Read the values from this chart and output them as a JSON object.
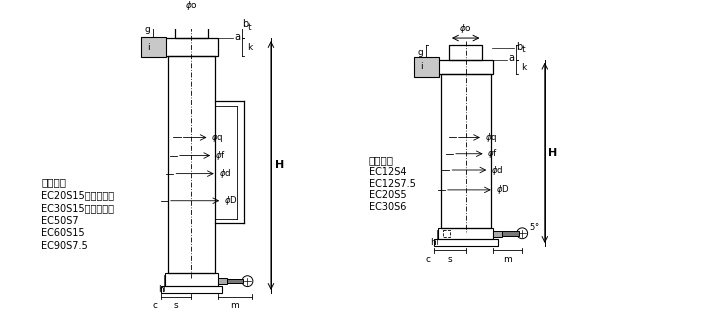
{
  "bg_color": "#ffffff",
  "line_color": "#000000",
  "gray_color": "#888888",
  "light_gray": "#cccccc",
  "fig_width": 7.1,
  "fig_height": 3.16,
  "left_diagram": {
    "label_lines": [
      "適応機種",
      "EC20S15（把手付）",
      "EC30S15（把手付）",
      "EC50S7",
      "EC60S15",
      "EC90S7.5"
    ]
  },
  "right_diagram": {
    "label_lines": [
      "適応機種",
      "EC12S4",
      "EC12S7.5",
      "EC20S5",
      "EC30S6"
    ]
  }
}
